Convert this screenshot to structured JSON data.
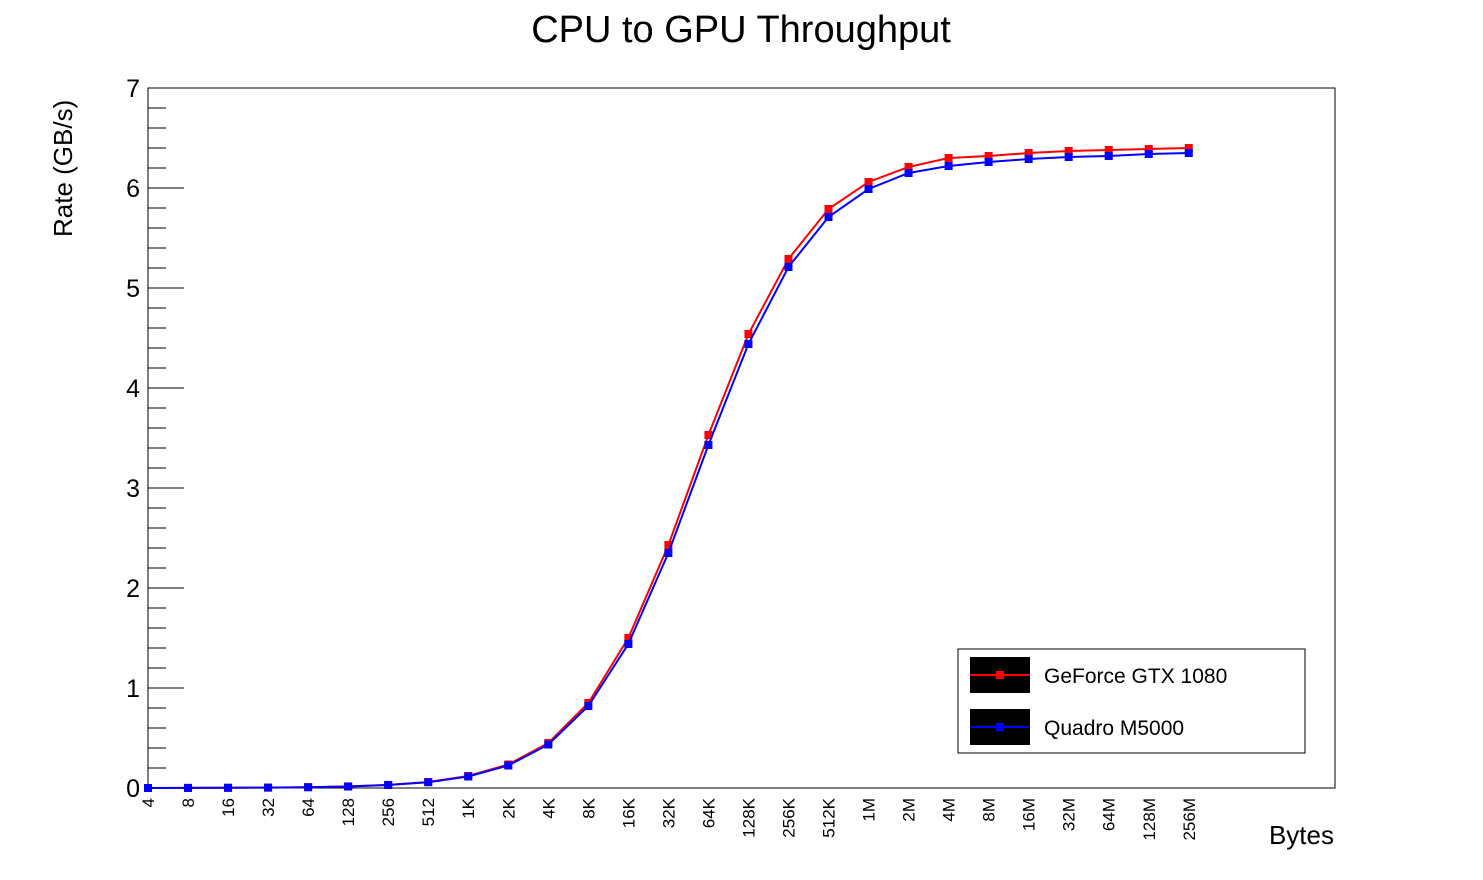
{
  "chart_data": {
    "type": "line",
    "title": "CPU to GPU Throughput",
    "xlabel": "Bytes",
    "ylabel": "Rate (GB/s)",
    "ylim": [
      0,
      7
    ],
    "x_scale": "log2",
    "yticks": [
      "0",
      "1",
      "2",
      "3",
      "4",
      "5",
      "6",
      "7"
    ],
    "categories": [
      "4",
      "8",
      "16",
      "32",
      "64",
      "128",
      "256",
      "512",
      "1K",
      "2K",
      "4K",
      "8K",
      "16K",
      "32K",
      "64K",
      "128K",
      "256K",
      "512K",
      "1M",
      "2M",
      "4M",
      "8M",
      "16M",
      "32M",
      "64M",
      "128M",
      "256M"
    ],
    "series": [
      {
        "name": "GeForce GTX 1080",
        "color": "#ff0000",
        "values": [
          0.0,
          0.001,
          0.002,
          0.004,
          0.008,
          0.016,
          0.031,
          0.06,
          0.12,
          0.235,
          0.45,
          0.85,
          1.5,
          2.43,
          3.53,
          4.54,
          5.29,
          5.79,
          6.06,
          6.21,
          6.3,
          6.32,
          6.35,
          6.37,
          6.38,
          6.39,
          6.4
        ]
      },
      {
        "name": "Quadro M5000",
        "color": "#0000ff",
        "values": [
          0.0,
          0.001,
          0.002,
          0.004,
          0.008,
          0.015,
          0.03,
          0.058,
          0.115,
          0.225,
          0.435,
          0.82,
          1.44,
          2.35,
          3.43,
          4.44,
          5.21,
          5.71,
          5.99,
          6.15,
          6.22,
          6.26,
          6.29,
          6.31,
          6.32,
          6.34,
          6.35
        ]
      }
    ],
    "legend_position": "bottom-right",
    "grid": false
  }
}
